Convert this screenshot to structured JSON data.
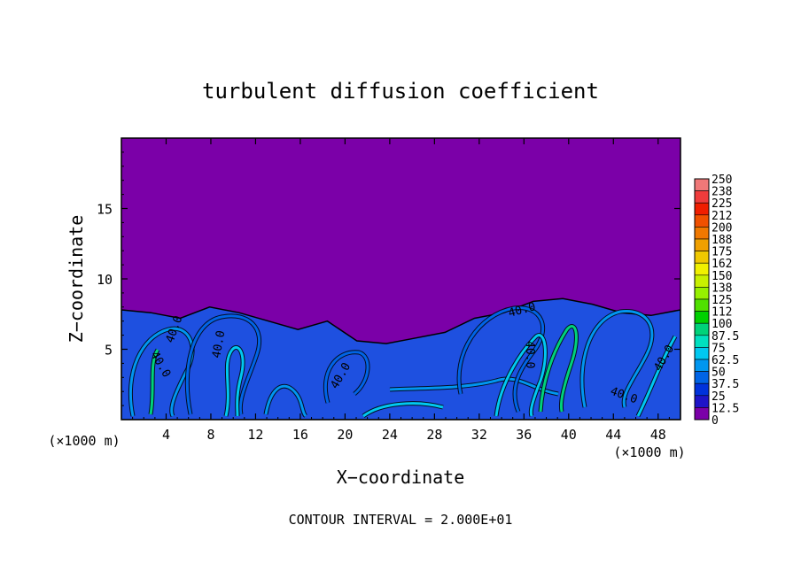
{
  "chart_data": {
    "type": "heatmap",
    "title": "turbulent diffusion coefficient",
    "xlabel": "X−coordinate",
    "ylabel": "Z−coordinate",
    "x_unit_left": "(×1000 m)",
    "x_unit_right": "(×1000 m)",
    "footer": "CONTOUR INTERVAL = 2.000E+01",
    "xlim": [
      0,
      50
    ],
    "ylim": [
      0,
      20
    ],
    "x_ticks": [
      "4",
      "8",
      "12",
      "16",
      "20",
      "24",
      "28",
      "32",
      "36",
      "40",
      "44",
      "48"
    ],
    "y_ticks": [
      "5",
      "10",
      "15"
    ],
    "contour_labels": [
      "40.0",
      "40.0",
      "40.0",
      "40.0",
      "40.0",
      "40.0",
      "40.0",
      "40.0"
    ],
    "background_color": "#7b00a8",
    "turbulent_layer_top_z": [
      7.8,
      7.6,
      7.2,
      8.0,
      7.6,
      7.0,
      6.4,
      7.0,
      5.6,
      5.4,
      5.8,
      6.2,
      7.2,
      7.6,
      8.4,
      8.6,
      8.2,
      7.6,
      7.4,
      7.8
    ],
    "colorbar": {
      "levels": [
        "250",
        "238",
        "225",
        "212",
        "200",
        "188",
        "175",
        "162",
        "150",
        "138",
        "125",
        "112",
        "100",
        "87.5",
        "75",
        "62.5",
        "50",
        "37.5",
        "25",
        "12.5",
        "0"
      ],
      "colors": [
        "#f07878",
        "#f03c3c",
        "#f01e00",
        "#f05000",
        "#f07800",
        "#f0a000",
        "#f0c800",
        "#f0f000",
        "#c8f000",
        "#96f000",
        "#50e000",
        "#00d000",
        "#00d27a",
        "#00e0c0",
        "#00c8f0",
        "#0096f0",
        "#0064e6",
        "#0032dc",
        "#1e14c8",
        "#7b00a8"
      ]
    }
  }
}
